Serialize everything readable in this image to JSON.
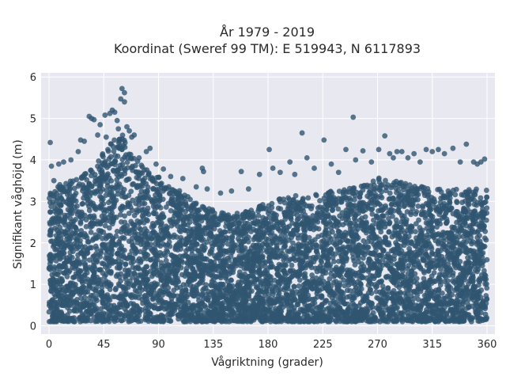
{
  "chart_data": {
    "type": "scatter",
    "title": "År 1979 - 2019",
    "subtitle": "Koordinat (Sweref 99 TM): E 519943, N 6117893",
    "xlabel": "Vågriktning (grader)",
    "ylabel": "Signifikant våghöjd (m)",
    "xlim": [
      -6.5,
      366.5
    ],
    "ylim": [
      -0.2,
      6.1
    ],
    "xticks": [
      0,
      45,
      90,
      135,
      180,
      225,
      270,
      315,
      360
    ],
    "yticks": [
      0,
      1,
      2,
      3,
      4,
      5,
      6
    ],
    "grid": true,
    "legend": "none",
    "marker_color": "#2f5570",
    "plot_background": "#e8e8f0",
    "envelope": {
      "x": [
        0,
        15,
        30,
        45,
        55,
        62,
        75,
        90,
        105,
        120,
        135,
        150,
        165,
        180,
        195,
        210,
        225,
        240,
        255,
        270,
        285,
        300,
        315,
        330,
        345,
        360
      ],
      "y_min": [
        0.1,
        0.1,
        0.1,
        0.1,
        0.1,
        0.1,
        0.1,
        0.1,
        0.1,
        0.1,
        0.1,
        0.1,
        0.1,
        0.1,
        0.1,
        0.1,
        0.1,
        0.1,
        0.1,
        0.1,
        0.1,
        0.1,
        0.1,
        0.1,
        0.1,
        0.1
      ],
      "y_max": [
        3.3,
        3.5,
        3.7,
        4.2,
        4.6,
        4.6,
        3.9,
        3.6,
        3.3,
        3.0,
        2.8,
        2.7,
        2.8,
        3.0,
        3.1,
        3.2,
        3.2,
        3.3,
        3.4,
        3.6,
        3.5,
        3.4,
        3.3,
        3.3,
        3.3,
        3.3
      ]
    },
    "outliers": [
      {
        "x": 1,
        "y": 4.42
      },
      {
        "x": 2,
        "y": 3.85
      },
      {
        "x": 4,
        "y": 3.5
      },
      {
        "x": 8,
        "y": 3.9
      },
      {
        "x": 12,
        "y": 3.95
      },
      {
        "x": 18,
        "y": 4.0
      },
      {
        "x": 24,
        "y": 4.2
      },
      {
        "x": 26,
        "y": 4.48
      },
      {
        "x": 29,
        "y": 4.45
      },
      {
        "x": 33,
        "y": 5.05
      },
      {
        "x": 35,
        "y": 5.0
      },
      {
        "x": 37,
        "y": 4.97
      },
      {
        "x": 40,
        "y": 4.6
      },
      {
        "x": 42,
        "y": 4.85
      },
      {
        "x": 46,
        "y": 5.08
      },
      {
        "x": 47,
        "y": 4.55
      },
      {
        "x": 50,
        "y": 5.12
      },
      {
        "x": 52,
        "y": 5.2
      },
      {
        "x": 54,
        "y": 5.15
      },
      {
        "x": 56,
        "y": 4.95
      },
      {
        "x": 57,
        "y": 4.75
      },
      {
        "x": 59,
        "y": 5.47
      },
      {
        "x": 60,
        "y": 5.72
      },
      {
        "x": 62,
        "y": 5.62
      },
      {
        "x": 62,
        "y": 5.4
      },
      {
        "x": 64,
        "y": 4.8
      },
      {
        "x": 66,
        "y": 4.7
      },
      {
        "x": 68,
        "y": 4.55
      },
      {
        "x": 70,
        "y": 4.6
      },
      {
        "x": 74,
        "y": 4.05
      },
      {
        "x": 80,
        "y": 4.2
      },
      {
        "x": 83,
        "y": 4.28
      },
      {
        "x": 88,
        "y": 3.9
      },
      {
        "x": 94,
        "y": 3.78
      },
      {
        "x": 100,
        "y": 3.6
      },
      {
        "x": 110,
        "y": 3.55
      },
      {
        "x": 121,
        "y": 3.35
      },
      {
        "x": 126,
        "y": 3.8
      },
      {
        "x": 127,
        "y": 3.72
      },
      {
        "x": 130,
        "y": 3.3
      },
      {
        "x": 141,
        "y": 3.2
      },
      {
        "x": 150,
        "y": 3.25
      },
      {
        "x": 158,
        "y": 3.72
      },
      {
        "x": 164,
        "y": 3.3
      },
      {
        "x": 173,
        "y": 3.65
      },
      {
        "x": 181,
        "y": 4.25
      },
      {
        "x": 184,
        "y": 3.8
      },
      {
        "x": 190,
        "y": 3.7
      },
      {
        "x": 198,
        "y": 3.95
      },
      {
        "x": 202,
        "y": 3.65
      },
      {
        "x": 208,
        "y": 4.65
      },
      {
        "x": 212,
        "y": 4.05
      },
      {
        "x": 218,
        "y": 3.8
      },
      {
        "x": 226,
        "y": 4.48
      },
      {
        "x": 232,
        "y": 3.9
      },
      {
        "x": 238,
        "y": 3.7
      },
      {
        "x": 244,
        "y": 4.25
      },
      {
        "x": 250,
        "y": 5.03
      },
      {
        "x": 252,
        "y": 4.0
      },
      {
        "x": 258,
        "y": 4.22
      },
      {
        "x": 265,
        "y": 3.95
      },
      {
        "x": 271,
        "y": 4.25
      },
      {
        "x": 276,
        "y": 4.58
      },
      {
        "x": 280,
        "y": 4.15
      },
      {
        "x": 283,
        "y": 4.05
      },
      {
        "x": 286,
        "y": 4.2
      },
      {
        "x": 290,
        "y": 4.2
      },
      {
        "x": 295,
        "y": 4.05
      },
      {
        "x": 300,
        "y": 4.15
      },
      {
        "x": 305,
        "y": 3.95
      },
      {
        "x": 310,
        "y": 4.25
      },
      {
        "x": 315,
        "y": 4.2
      },
      {
        "x": 320,
        "y": 4.25
      },
      {
        "x": 325,
        "y": 4.15
      },
      {
        "x": 332,
        "y": 4.28
      },
      {
        "x": 338,
        "y": 3.95
      },
      {
        "x": 343,
        "y": 4.38
      },
      {
        "x": 349,
        "y": 3.95
      },
      {
        "x": 352,
        "y": 3.9
      },
      {
        "x": 355,
        "y": 3.95
      },
      {
        "x": 358,
        "y": 4.02
      }
    ]
  }
}
